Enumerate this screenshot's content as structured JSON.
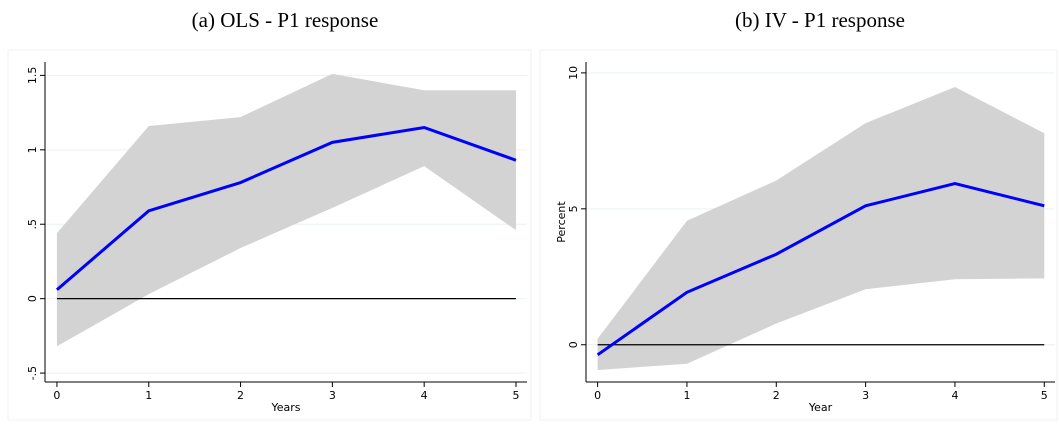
{
  "chart_data": [
    {
      "type": "line",
      "title": "(a) OLS - P1 response",
      "x_label": "Years",
      "x": [
        0,
        1,
        2,
        3,
        4,
        5
      ],
      "values": [
        0.06,
        0.59,
        0.78,
        1.05,
        1.15,
        0.93
      ],
      "upper": [
        0.44,
        1.16,
        1.22,
        1.51,
        1.4,
        1.4
      ],
      "lower": [
        -0.32,
        0.03,
        0.34,
        0.61,
        0.89,
        0.46
      ],
      "color": "#0000ff",
      "band_color": "#d3d3d3",
      "reference_line": 0,
      "xlim": [
        -0.13,
        5.12
      ],
      "xticks": [
        0,
        1,
        2,
        3,
        4,
        5
      ],
      "ylim": [
        -0.56,
        1.59
      ],
      "yticks": [
        {
          "value": -0.5,
          "label": "-.5"
        },
        0,
        {
          "value": 0.5,
          "label": ".5"
        },
        1,
        1.5
      ],
      "grid": true
    },
    {
      "type": "line",
      "title": "(b) IV - P1 response",
      "x_label": "Year",
      "y_label": "Percent",
      "x": [
        0,
        1,
        2,
        3,
        4,
        5
      ],
      "values": [
        -0.37,
        1.93,
        3.33,
        5.11,
        5.93,
        5.11
      ],
      "upper": [
        0.22,
        4.56,
        6.04,
        8.15,
        9.48,
        7.78
      ],
      "lower": [
        -0.93,
        -0.7,
        0.78,
        2.04,
        2.41,
        2.44
      ],
      "color": "#0000ff",
      "band_color": "#d3d3d3",
      "reference_line": 0,
      "xlim": [
        -0.13,
        5.12
      ],
      "xticks": [
        0,
        1,
        2,
        3,
        4,
        5
      ],
      "ylim": [
        -1.37,
        10.4
      ],
      "yticks": [
        0,
        5,
        10
      ],
      "grid": true
    }
  ]
}
